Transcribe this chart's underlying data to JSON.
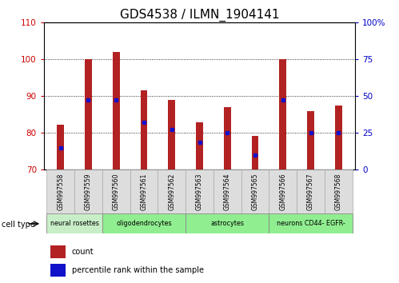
{
  "title": "GDS4538 / ILMN_1904141",
  "samples": [
    "GSM997558",
    "GSM997559",
    "GSM997560",
    "GSM997561",
    "GSM997562",
    "GSM997563",
    "GSM997564",
    "GSM997565",
    "GSM997566",
    "GSM997567",
    "GSM997568"
  ],
  "red_values": [
    82.2,
    100.0,
    102.0,
    91.5,
    89.0,
    83.0,
    87.0,
    79.2,
    100.0,
    86.0,
    87.5
  ],
  "blue_values": [
    76.0,
    89.0,
    89.0,
    83.0,
    81.0,
    77.5,
    80.0,
    74.0,
    89.0,
    80.0,
    80.0
  ],
  "ylim": [
    70,
    110
  ],
  "yticks_left": [
    70,
    80,
    90,
    100,
    110
  ],
  "ytick_right_labels": [
    "0",
    "25",
    "50",
    "75",
    "100%"
  ],
  "bar_bottom": 70,
  "bar_color": "#b22222",
  "blue_color": "#1111cc",
  "grid_yticks": [
    80,
    90,
    100
  ],
  "ylabel_left_color": "#cc0000",
  "ylabel_right_color": "#0000cc",
  "title_fontsize": 11,
  "tick_fontsize": 7.5,
  "bar_width": 0.25,
  "cell_groups": [
    {
      "label": "neural rosettes",
      "indices": [
        0,
        1
      ],
      "color": "#c8eec8"
    },
    {
      "label": "oligodendrocytes",
      "indices": [
        2,
        3,
        4
      ],
      "color": "#90ee90"
    },
    {
      "label": "astrocytes",
      "indices": [
        5,
        6,
        7
      ],
      "color": "#90ee90"
    },
    {
      "label": "neurons CD44- EGFR-",
      "indices": [
        8,
        9,
        10
      ],
      "color": "#90ee90"
    }
  ]
}
